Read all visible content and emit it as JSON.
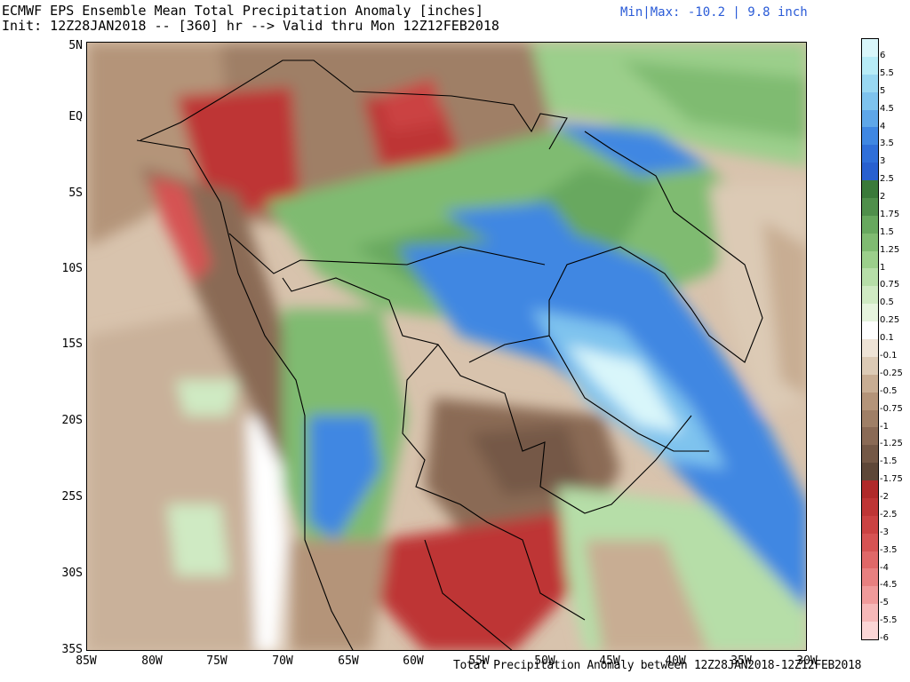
{
  "header": {
    "title_line1": "ECMWF EPS Ensemble Mean Total Precipitation Anomaly [inches]",
    "title_line2": "Init: 12Z28JAN2018 -- [360] hr --> Valid thru Mon 12Z12FEB2018",
    "minmax": "Min|Max: -10.2 | 9.8 inch"
  },
  "footer": {
    "text": "Total Precipitation Anomaly between 12Z28JAN2018-12Z12FEB2018"
  },
  "axes": {
    "x_labels": [
      "85W",
      "80W",
      "75W",
      "70W",
      "65W",
      "60W",
      "55W",
      "50W",
      "45W",
      "40W",
      "35W",
      "30W"
    ],
    "y_labels": [
      "5N",
      "EQ",
      "5S",
      "10S",
      "15S",
      "20S",
      "25S",
      "30S",
      "35S"
    ],
    "lon_range": [
      -85,
      -30
    ],
    "lat_range": [
      -35,
      5
    ]
  },
  "colorbar": {
    "labels": [
      "6",
      "5.5",
      "5",
      "4.5",
      "4",
      "3.5",
      "3",
      "2.5",
      "2",
      "1.75",
      "1.5",
      "1.25",
      "1",
      "0.75",
      "0.5",
      "0.25",
      "0.1",
      "-0.1",
      "-0.25",
      "-0.5",
      "-0.75",
      "-1",
      "-1.25",
      "-1.5",
      "-1.75",
      "-2",
      "-2.5",
      "-3",
      "-3.5",
      "-4",
      "-4.5",
      "-5",
      "-5.5",
      "-6"
    ],
    "colors": [
      "#d9f6fa",
      "#b7ecf7",
      "#99d8f2",
      "#7ec3ee",
      "#5ea7e9",
      "#3f87e2",
      "#2f6fd9",
      "#2860d0",
      "#3a7a3a",
      "#4f8f4b",
      "#67a85e",
      "#7fbb71",
      "#9bcf8b",
      "#b6dea8",
      "#cfeac3",
      "#e6f4de",
      "#ffffff",
      "#eee3d6",
      "#dccab5",
      "#c8ad93",
      "#b49479",
      "#9f7f66",
      "#8a6a55",
      "#745846",
      "#5e4738",
      "#b02a2a",
      "#be3535",
      "#cb4242",
      "#d65353",
      "#e06868",
      "#e88080",
      "#f09a9a",
      "#f6b8b8",
      "#fbd6d6"
    ]
  },
  "legend_colors": {
    "ocean": "#efe7de",
    "land_base": "#ffffff",
    "border": "#000000"
  }
}
